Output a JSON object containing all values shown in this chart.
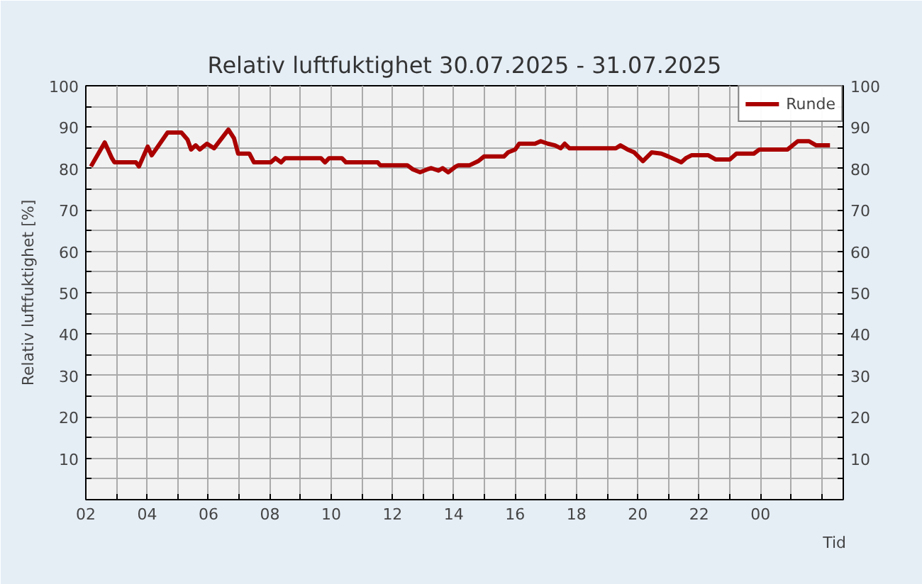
{
  "chart_data": {
    "type": "line",
    "title": "Relativ luftfuktighet 30.07.2025 - 31.07.2025",
    "xlabel": "Tid",
    "ylabel": "Relativ luftfuktighet [%]",
    "x": [
      "2025-07-30T02:10",
      "2025-07-30T02:37",
      "2025-07-30T02:51",
      "2025-07-30T02:56",
      "2025-07-30T03:38",
      "2025-07-30T03:44",
      "2025-07-30T04:01",
      "2025-07-30T04:09",
      "2025-07-30T04:40",
      "2025-07-30T05:07",
      "2025-07-30T05:19",
      "2025-07-30T05:26",
      "2025-07-30T05:35",
      "2025-07-30T05:43",
      "2025-07-30T05:57",
      "2025-07-30T06:11",
      "2025-07-30T06:39",
      "2025-07-30T06:50",
      "2025-07-30T06:58",
      "2025-07-30T07:20",
      "2025-07-30T07:29",
      "2025-07-30T08:02",
      "2025-07-30T08:11",
      "2025-07-30T08:22",
      "2025-07-30T08:30",
      "2025-07-30T09:40",
      "2025-07-30T09:48",
      "2025-07-30T09:56",
      "2025-07-30T10:21",
      "2025-07-30T10:29",
      "2025-07-30T11:31",
      "2025-07-30T11:36",
      "2025-07-30T12:29",
      "2025-07-30T12:40",
      "2025-07-30T12:54",
      "2025-07-30T13:08",
      "2025-07-30T13:16",
      "2025-07-30T13:30",
      "2025-07-30T13:38",
      "2025-07-30T13:49",
      "2025-07-30T14:04",
      "2025-07-30T14:09",
      "2025-07-30T14:31",
      "2025-07-30T14:48",
      "2025-07-30T14:59",
      "2025-07-30T15:38",
      "2025-07-30T15:46",
      "2025-07-30T16:00",
      "2025-07-30T16:08",
      "2025-07-30T16:39",
      "2025-07-30T16:50",
      "2025-07-30T17:04",
      "2025-07-30T17:18",
      "2025-07-30T17:29",
      "2025-07-30T17:37",
      "2025-07-30T17:46",
      "2025-07-30T19:17",
      "2025-07-30T19:26",
      "2025-07-30T19:40",
      "2025-07-30T19:53",
      "2025-07-30T20:10",
      "2025-07-30T20:27",
      "2025-07-30T20:46",
      "2025-07-30T21:00",
      "2025-07-30T21:25",
      "2025-07-30T21:34",
      "2025-07-30T21:45",
      "2025-07-30T22:18",
      "2025-07-30T22:32",
      "2025-07-30T23:00",
      "2025-07-30T23:13",
      "2025-07-30T23:47",
      "2025-07-30T23:58",
      "2025-07-31T00:53",
      "2025-07-31T01:13",
      "2025-07-31T01:35",
      "2025-07-31T01:49",
      "2025-07-31T02:16"
    ],
    "series": [
      {
        "name": "Runde",
        "color": "#aa0000",
        "values": [
          80.5,
          86.3,
          82.5,
          81.5,
          81.5,
          80.5,
          85.3,
          83.2,
          88.7,
          88.7,
          87.0,
          84.6,
          85.6,
          84.6,
          86.0,
          84.9,
          89.4,
          87.3,
          83.6,
          83.6,
          81.5,
          81.5,
          82.5,
          81.5,
          82.5,
          82.5,
          81.5,
          82.5,
          82.5,
          81.5,
          81.5,
          80.8,
          80.8,
          79.8,
          79.1,
          79.8,
          80.1,
          79.5,
          80.1,
          79.1,
          80.5,
          80.8,
          80.8,
          81.8,
          82.9,
          82.9,
          83.9,
          84.6,
          86.0,
          86.0,
          86.6,
          86.0,
          85.6,
          84.9,
          86.0,
          84.9,
          84.9,
          85.6,
          84.6,
          83.9,
          81.8,
          83.9,
          83.6,
          82.9,
          81.5,
          82.5,
          83.2,
          83.2,
          82.2,
          82.2,
          83.6,
          83.6,
          84.6,
          84.6,
          86.6,
          86.6,
          85.6,
          85.6
        ]
      }
    ],
    "xlim": [
      "2025-07-30T02:00",
      "2025-07-31T02:42"
    ],
    "xticks": [
      {
        "value": "2025-07-30T02:00",
        "label": "02"
      },
      {
        "value": "2025-07-30T03:00",
        "label": null
      },
      {
        "value": "2025-07-30T04:00",
        "label": "04"
      },
      {
        "value": "2025-07-30T05:00",
        "label": null
      },
      {
        "value": "2025-07-30T06:00",
        "label": "06"
      },
      {
        "value": "2025-07-30T07:00",
        "label": null
      },
      {
        "value": "2025-07-30T08:00",
        "label": "08"
      },
      {
        "value": "2025-07-30T09:00",
        "label": null
      },
      {
        "value": "2025-07-30T10:00",
        "label": "10"
      },
      {
        "value": "2025-07-30T11:00",
        "label": null
      },
      {
        "value": "2025-07-30T12:00",
        "label": "12"
      },
      {
        "value": "2025-07-30T13:00",
        "label": null
      },
      {
        "value": "2025-07-30T14:00",
        "label": "14"
      },
      {
        "value": "2025-07-30T15:00",
        "label": null
      },
      {
        "value": "2025-07-30T16:00",
        "label": "16"
      },
      {
        "value": "2025-07-30T17:00",
        "label": null
      },
      {
        "value": "2025-07-30T18:00",
        "label": "18"
      },
      {
        "value": "2025-07-30T19:00",
        "label": null
      },
      {
        "value": "2025-07-30T20:00",
        "label": "20"
      },
      {
        "value": "2025-07-30T21:00",
        "label": null
      },
      {
        "value": "2025-07-30T22:00",
        "label": "22"
      },
      {
        "value": "2025-07-30T23:00",
        "label": null
      },
      {
        "value": "2025-07-31T00:00",
        "label": "00"
      },
      {
        "value": "2025-07-31T01:00",
        "label": null
      },
      {
        "value": "2025-07-31T02:00",
        "label": null
      }
    ],
    "ylim": [
      0,
      100
    ],
    "yticks": [
      {
        "value": 5,
        "label": null
      },
      10,
      {
        "value": 15,
        "label": null
      },
      20,
      {
        "value": 25,
        "label": null
      },
      30,
      {
        "value": 35,
        "label": null
      },
      40,
      {
        "value": 45,
        "label": null
      },
      50,
      {
        "value": 55,
        "label": null
      },
      60,
      {
        "value": 65,
        "label": null
      },
      70,
      {
        "value": 75,
        "label": null
      },
      80,
      {
        "value": 85,
        "label": null
      },
      90,
      {
        "value": 95,
        "label": null
      },
      100
    ],
    "y2lim": [
      0,
      100
    ],
    "y2ticks": [
      {
        "value": 5,
        "label": null
      },
      10,
      {
        "value": 15,
        "label": null
      },
      20,
      {
        "value": 25,
        "label": null
      },
      30,
      {
        "value": 35,
        "label": null
      },
      40,
      {
        "value": 45,
        "label": null
      },
      50,
      {
        "value": 55,
        "label": null
      },
      60,
      {
        "value": 65,
        "label": null
      },
      70,
      {
        "value": 75,
        "label": null
      },
      80,
      {
        "value": 85,
        "label": null
      },
      90,
      {
        "value": 95,
        "label": null
      },
      100
    ],
    "grid": true,
    "legend": "top right",
    "marker": "none",
    "line_style": "solid"
  }
}
